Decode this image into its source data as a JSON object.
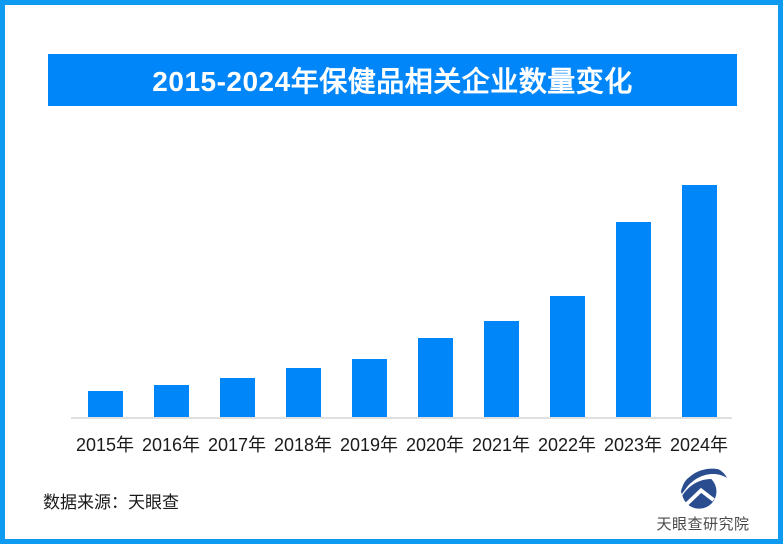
{
  "accent_colors": {
    "bar_blue": "#0186fa",
    "banner_blue": "#0186fa",
    "frame_border_blue": "#0f9af2",
    "axis_gray": "#e0e0e0",
    "logo_navy": "#2a4d8f",
    "logo_text_gray": "#4a4a4a"
  },
  "chart_data": {
    "type": "bar",
    "title": "2015-2024年保健品相关企业数量变化",
    "categories": [
      "2015年",
      "2016年",
      "2017年",
      "2018年",
      "2019年",
      "2020年",
      "2021年",
      "2022年",
      "2023年",
      "2024年"
    ],
    "values": [
      26,
      32,
      39,
      49,
      58,
      79,
      96,
      121,
      195,
      232
    ],
    "value_scale": "relative bar height (chart shows no y-axis, gridlines or data labels)",
    "xlabel": "",
    "ylabel": "",
    "grid": false,
    "legend": false,
    "bar_color": "#0186fa"
  },
  "footer": {
    "source": "数据来源：天眼查",
    "brand": "天眼查研究院",
    "brand_logo": "tianyancha-eye-logo"
  }
}
